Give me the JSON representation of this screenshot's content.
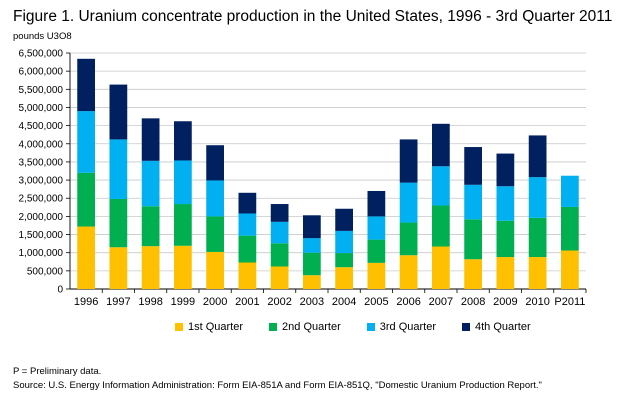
{
  "chart_data": {
    "type": "bar",
    "stacked": true,
    "title": "Figure 1.  Uranium concentrate production in the United States, 1996 - 3rd Quarter 2011",
    "ylabel": "pounds U3O8",
    "xlabel": "",
    "ylim": [
      0,
      6500000
    ],
    "yticks": [
      "0",
      "500,000",
      "1,000,000",
      "1,500,000",
      "2,000,000",
      "2,500,000",
      "3,000,000",
      "3,500,000",
      "4,000,000",
      "4,500,000",
      "5,000,000",
      "5,500,000",
      "6,000,000",
      "6,500,000"
    ],
    "ytick_values": [
      0,
      500000,
      1000000,
      1500000,
      2000000,
      2500000,
      3000000,
      3500000,
      4000000,
      4500000,
      5000000,
      5500000,
      6000000,
      6500000
    ],
    "categories": [
      "1996",
      "1997",
      "1998",
      "1999",
      "2000",
      "2001",
      "2002",
      "2003",
      "2004",
      "2005",
      "2006",
      "2007",
      "2008",
      "2009",
      "2010",
      "P2011"
    ],
    "series": [
      {
        "name": "1st Quarter",
        "color": "#FFC000",
        "values": [
          1720000,
          1150000,
          1180000,
          1190000,
          1020000,
          730000,
          620000,
          380000,
          600000,
          720000,
          930000,
          1170000,
          820000,
          880000,
          880000,
          1060000
        ]
      },
      {
        "name": "2nd Quarter",
        "color": "#00B050",
        "values": [
          1480000,
          1330000,
          1100000,
          1150000,
          980000,
          740000,
          640000,
          620000,
          390000,
          640000,
          900000,
          1130000,
          1100000,
          1000000,
          1080000,
          1200000
        ]
      },
      {
        "name": "3rd Quarter",
        "color": "#00B0F0",
        "values": [
          1700000,
          1640000,
          1250000,
          1200000,
          990000,
          610000,
          590000,
          400000,
          610000,
          640000,
          1100000,
          1080000,
          950000,
          950000,
          1120000,
          860000
        ]
      },
      {
        "name": "4th Quarter",
        "color": "#002060",
        "values": [
          1440000,
          1510000,
          1170000,
          1080000,
          970000,
          570000,
          490000,
          630000,
          610000,
          700000,
          1190000,
          1170000,
          1040000,
          900000,
          1150000,
          0
        ]
      }
    ],
    "grid": true,
    "legend_position": "bottom"
  },
  "footnote": "P = Preliminary data.",
  "source": "Source: U.S. Energy Information Administration: Form EIA-851A and Form EIA-851Q, \"Domestic Uranium Production Report.\""
}
